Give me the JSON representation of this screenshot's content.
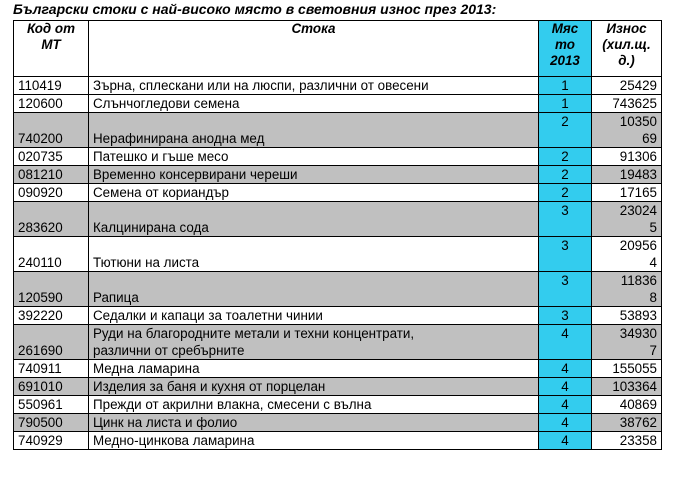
{
  "title": "Български стоки с най-високо място в световния износ през 2013:",
  "headers": {
    "code": "Код от МТ",
    "commodity": "Стока",
    "place": "Място 2013",
    "value": "Износ (хил.щ.д.)"
  },
  "header_lines": {
    "code": [
      "Код от",
      "МТ"
    ],
    "place": [
      "Мяс",
      "то",
      "2013"
    ],
    "value": [
      "Износ",
      "(хил.щ.",
      "д.)"
    ]
  },
  "rows": [
    {
      "code": "110419",
      "name": "Зърна, сплескани или на люспи, различни от овесени",
      "place": "1",
      "value": "25429",
      "gray": false
    },
    {
      "code": "120600",
      "name": "Слънчогледови семена",
      "place": "1",
      "value": "743625",
      "gray": false
    },
    {
      "code": "740200",
      "name": "Нерафинирана анодна мед",
      "place": "2",
      "value": "1035069",
      "value_lines": [
        "10350",
        "69"
      ],
      "gray": true
    },
    {
      "code": "020735",
      "name": "Патешко и гъше месо",
      "place": "2",
      "value": "91306",
      "gray": false
    },
    {
      "code": "081210",
      "name": "Временно консервирани череши",
      "place": "2",
      "value": "19483",
      "gray": true
    },
    {
      "code": "090920",
      "name": "Семена от кориандър",
      "place": "2",
      "value": "17165",
      "gray": false
    },
    {
      "code": "283620",
      "name": "Калцинирана сода",
      "place": "3",
      "value": "230245",
      "value_lines": [
        "23024",
        "5"
      ],
      "gray": true
    },
    {
      "code": "240110",
      "name": "Тютюни на листа",
      "place": "3",
      "value": "209564",
      "value_lines": [
        "20956",
        "4"
      ],
      "gray": false
    },
    {
      "code": "120590",
      "name": "Рапица",
      "place": "3",
      "value": "118368",
      "value_lines": [
        "11836",
        "8"
      ],
      "gray": true
    },
    {
      "code": "392220",
      "name": "Седалки и капаци за тоалетни чинии",
      "place": "3",
      "value": "53893",
      "gray": false
    },
    {
      "code": "261690",
      "name": "Руди на благородните метали и техни концентрати, различни от сребърните",
      "name_lines": [
        "Руди на благородните метали и техни концентрати,",
        "различни от сребърните"
      ],
      "place": "4",
      "value": "349307",
      "value_lines": [
        "34930",
        "7"
      ],
      "gray": true
    },
    {
      "code": "740911",
      "name": "Медна ламарина",
      "place": "4",
      "value": "155055",
      "gray": false
    },
    {
      "code": "691010",
      "name": "Изделия за баня и кухня от порцелан",
      "place": "4",
      "value": "103364",
      "gray": true
    },
    {
      "code": "550961",
      "name": "Прежди от акрилни влакна, смесени с вълна",
      "place": "4",
      "value": "40869",
      "gray": false
    },
    {
      "code": "790500",
      "name": "Цинк на листа и фолио",
      "place": "4",
      "value": "38762",
      "gray": true
    },
    {
      "code": "740929",
      "name": "Медно-цинкова ламарина",
      "place": "4",
      "value": "23358",
      "gray": false
    }
  ]
}
